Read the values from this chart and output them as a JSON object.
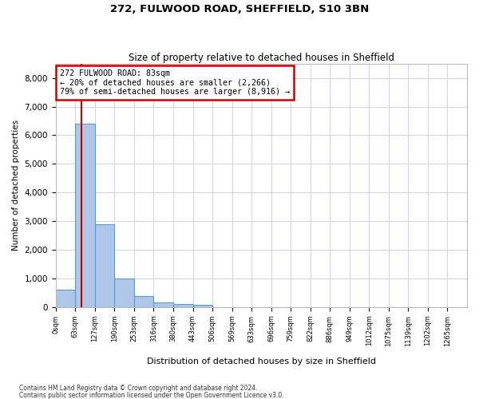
{
  "title1": "272, FULWOOD ROAD, SHEFFIELD, S10 3BN",
  "title2": "Size of property relative to detached houses in Sheffield",
  "xlabel": "Distribution of detached houses by size in Sheffield",
  "ylabel": "Number of detached properties",
  "footnote1": "Contains HM Land Registry data © Crown copyright and database right 2024.",
  "footnote2": "Contains public sector information licensed under the Open Government Licence v3.0.",
  "bin_labels": [
    "0sqm",
    "63sqm",
    "127sqm",
    "190sqm",
    "253sqm",
    "316sqm",
    "380sqm",
    "443sqm",
    "506sqm",
    "569sqm",
    "633sqm",
    "696sqm",
    "759sqm",
    "822sqm",
    "886sqm",
    "949sqm",
    "1012sqm",
    "1075sqm",
    "1139sqm",
    "1202sqm",
    "1265sqm"
  ],
  "bar_values": [
    600,
    6400,
    2900,
    1000,
    380,
    160,
    100,
    80,
    0,
    0,
    0,
    0,
    0,
    0,
    0,
    0,
    0,
    0,
    0,
    0,
    0
  ],
  "bar_color": "#aec6e8",
  "bar_edge_color": "#5b9bd5",
  "grid_color": "#d0d8e8",
  "property_size": 83,
  "red_line_color": "#cc0000",
  "annotation_text": "272 FULWOOD ROAD: 83sqm\n← 20% of detached houses are smaller (2,266)\n79% of semi-detached houses are larger (8,916) →",
  "annotation_box_edgecolor": "#cc0000",
  "ylim": [
    0,
    8500
  ],
  "yticks": [
    0,
    1000,
    2000,
    3000,
    4000,
    5000,
    6000,
    7000,
    8000
  ],
  "bin_width": 63
}
